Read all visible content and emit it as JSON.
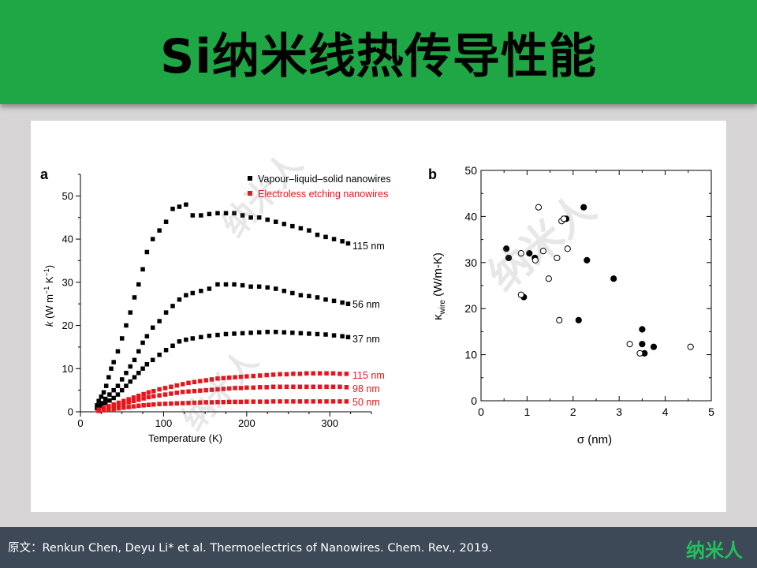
{
  "slide_title": "Si纳米线热传导性能",
  "footer": {
    "citation": "原文：Renkun Chen, Deyu Li* et al. Thermoelectrics of Nanowires. Chem. Rev., 2019.",
    "logo": "纳米人"
  },
  "watermark_text": "纳米人",
  "colors": {
    "header_green": "#1fa645",
    "footer_bg": "#3d4957",
    "logo_green": "#22c05a",
    "vls_series": "#000000",
    "ee_series": "#e8141b"
  },
  "chart_data": [
    {
      "type": "scatter",
      "panel_label": "a",
      "xlabel": "Temperature (K)",
      "ylabel": "k (W m⁻¹ K⁻¹)",
      "ylabel_parts": {
        "symbol": "k",
        "pre": " (W m",
        "exp1": "−1",
        "mid": " K",
        "exp2": "−1",
        "post": ")"
      },
      "xlim": [
        0,
        350
      ],
      "ylim": [
        0,
        55
      ],
      "xticks": [
        0,
        100,
        200,
        300
      ],
      "yticks": [
        0,
        10,
        20,
        30,
        40,
        50
      ],
      "legend": {
        "placement": "top-right",
        "entries": [
          {
            "name": "Vapour–liquid–solid nanowires",
            "color": "#000000"
          },
          {
            "name": "Electroless etching nanowires",
            "color": "#e8141b"
          }
        ]
      },
      "series": [
        {
          "group": "Vapour–liquid–solid nanowires",
          "label": "115 nm",
          "color": "#000000",
          "marker": "square",
          "x": [
            20,
            22,
            25,
            28,
            31,
            34,
            37,
            40,
            45,
            50,
            55,
            60,
            65,
            70,
            75,
            80,
            87,
            95,
            103,
            111,
            119,
            127,
            135,
            145,
            155,
            165,
            175,
            185,
            195,
            205,
            215,
            225,
            235,
            245,
            255,
            265,
            275,
            285,
            295,
            305,
            315,
            322
          ],
          "y": [
            1.5,
            2.5,
            3.5,
            4.5,
            6,
            8,
            10,
            11.5,
            14,
            17,
            20,
            23,
            26.5,
            29.5,
            33,
            37,
            40,
            42,
            44,
            47,
            47.5,
            48,
            45.5,
            45.5,
            45.8,
            46,
            46,
            46,
            45.5,
            45,
            45,
            44.5,
            44,
            43.5,
            43,
            42.5,
            42,
            41,
            40.5,
            40,
            39.5,
            39
          ]
        },
        {
          "group": "Vapour–liquid–solid nanowires",
          "label": "56 nm",
          "color": "#000000",
          "marker": "square",
          "x": [
            20,
            25,
            30,
            35,
            40,
            45,
            50,
            55,
            60,
            65,
            70,
            75,
            80,
            87,
            95,
            103,
            111,
            119,
            127,
            135,
            145,
            155,
            165,
            175,
            185,
            195,
            205,
            215,
            225,
            235,
            245,
            255,
            265,
            275,
            285,
            295,
            305,
            315,
            322
          ],
          "y": [
            1,
            2,
            3,
            4,
            5,
            6,
            7.5,
            9,
            10.5,
            12,
            14,
            16,
            17.5,
            19.5,
            21,
            23,
            24.5,
            26,
            27,
            27.5,
            28,
            28.5,
            29.5,
            29.5,
            29.5,
            29.3,
            29,
            29,
            28.8,
            28.5,
            28,
            27.5,
            27,
            26.8,
            26.5,
            26,
            25.7,
            25.3,
            25
          ]
        },
        {
          "group": "Vapour–liquid–solid nanowires",
          "label": "37 nm",
          "color": "#000000",
          "marker": "square",
          "x": [
            20,
            25,
            30,
            35,
            40,
            45,
            50,
            55,
            60,
            65,
            70,
            75,
            80,
            87,
            95,
            103,
            111,
            119,
            127,
            135,
            145,
            155,
            165,
            175,
            185,
            195,
            205,
            215,
            225,
            235,
            245,
            255,
            265,
            275,
            285,
            295,
            305,
            315,
            322
          ],
          "y": [
            0.8,
            1.3,
            2,
            2.6,
            3.2,
            4,
            5,
            6,
            7,
            8,
            9,
            10,
            11,
            12,
            13.2,
            14.3,
            15.3,
            16.3,
            16.7,
            17,
            17.3,
            17.6,
            17.8,
            18,
            18.1,
            18.2,
            18.3,
            18.4,
            18.5,
            18.5,
            18.4,
            18.3,
            18.2,
            18.1,
            18,
            17.9,
            17.7,
            17.5,
            17.3
          ]
        },
        {
          "group": "Electroless etching nanowires",
          "label": "115 nm",
          "color": "#e8141b",
          "marker": "square",
          "x": [
            22,
            28,
            34,
            40,
            46,
            52,
            58,
            64,
            70,
            76,
            82,
            88,
            95,
            102,
            109,
            116,
            123,
            130,
            137,
            144,
            151,
            158,
            165,
            172,
            179,
            186,
            193,
            200,
            208,
            216,
            224,
            232,
            240,
            248,
            256,
            264,
            272,
            280,
            288,
            296,
            304,
            312,
            320
          ],
          "y": [
            0.5,
            0.9,
            1.3,
            1.7,
            2.1,
            2.5,
            2.9,
            3.3,
            3.7,
            4.1,
            4.5,
            4.8,
            5.2,
            5.5,
            5.8,
            6.1,
            6.4,
            6.7,
            6.9,
            7.1,
            7.3,
            7.5,
            7.7,
            7.8,
            7.9,
            8,
            8.1,
            8.2,
            8.3,
            8.4,
            8.5,
            8.6,
            8.7,
            8.7,
            8.8,
            8.8,
            8.9,
            8.9,
            8.9,
            8.9,
            8.9,
            8.8,
            8.8
          ]
        },
        {
          "group": "Electroless etching nanowires",
          "label": "98 nm",
          "color": "#e8141b",
          "marker": "square",
          "x": [
            22,
            28,
            34,
            40,
            46,
            52,
            58,
            64,
            70,
            76,
            82,
            88,
            95,
            102,
            109,
            116,
            123,
            130,
            137,
            144,
            151,
            158,
            165,
            172,
            179,
            186,
            193,
            200,
            208,
            216,
            224,
            232,
            240,
            248,
            256,
            264,
            272,
            280,
            288,
            296,
            304,
            312,
            320
          ],
          "y": [
            0.4,
            0.7,
            1,
            1.3,
            1.6,
            1.9,
            2.2,
            2.5,
            2.8,
            3.1,
            3.4,
            3.6,
            3.8,
            4,
            4.2,
            4.4,
            4.6,
            4.7,
            4.8,
            4.9,
            5,
            5.1,
            5.2,
            5.3,
            5.4,
            5.5,
            5.5,
            5.6,
            5.6,
            5.7,
            5.7,
            5.8,
            5.8,
            5.8,
            5.8,
            5.8,
            5.8,
            5.8,
            5.8,
            5.8,
            5.8,
            5.8,
            5.7
          ]
        },
        {
          "group": "Electroless etching nanowires",
          "label": "50 nm",
          "color": "#e8141b",
          "marker": "square",
          "x": [
            22,
            28,
            34,
            40,
            46,
            52,
            58,
            64,
            70,
            76,
            82,
            88,
            95,
            102,
            109,
            116,
            123,
            130,
            137,
            144,
            151,
            158,
            165,
            172,
            179,
            186,
            193,
            200,
            208,
            216,
            224,
            232,
            240,
            248,
            256,
            264,
            272,
            280,
            288,
            296,
            304,
            312,
            320
          ],
          "y": [
            0.2,
            0.35,
            0.5,
            0.65,
            0.8,
            0.95,
            1.1,
            1.25,
            1.4,
            1.5,
            1.6,
            1.7,
            1.8,
            1.85,
            1.9,
            1.95,
            2,
            2.05,
            2.1,
            2.15,
            2.2,
            2.2,
            2.25,
            2.25,
            2.3,
            2.3,
            2.3,
            2.35,
            2.35,
            2.35,
            2.35,
            2.4,
            2.4,
            2.4,
            2.4,
            2.4,
            2.4,
            2.4,
            2.4,
            2.4,
            2.4,
            2.4,
            2.4
          ]
        }
      ]
    },
    {
      "type": "scatter",
      "panel_label": "b",
      "xlabel": "σ (nm)",
      "ylabel_parts": {
        "symbol": "κ",
        "sub": "wire",
        "post": " (W/m-K)"
      },
      "xlim": [
        0,
        5
      ],
      "ylim": [
        0,
        50
      ],
      "xticks": [
        0,
        1,
        2,
        3,
        4,
        5
      ],
      "yticks": [
        0,
        10,
        20,
        30,
        40,
        50
      ],
      "grid": false,
      "series": [
        {
          "marker": "filled-circle",
          "x": [
            0.55,
            0.6,
            0.93,
            1.05,
            1.17,
            1.85,
            2.12,
            2.23,
            2.3,
            2.88,
            3.5,
            3.5,
            3.55,
            3.75
          ],
          "y": [
            33,
            31,
            22.5,
            32,
            31,
            39.5,
            17.5,
            42,
            30.5,
            26.5,
            15.5,
            12.3,
            10.3,
            11.7
          ]
        },
        {
          "marker": "open-circle",
          "x": [
            0.87,
            0.87,
            1.18,
            1.25,
            1.35,
            1.47,
            1.65,
            1.7,
            1.75,
            1.8,
            1.88,
            3.23,
            3.45,
            4.55
          ],
          "y": [
            32,
            23,
            30.5,
            42,
            32.5,
            26.5,
            31,
            17.5,
            39,
            39.5,
            33,
            12.3,
            10.3,
            11.7
          ]
        }
      ]
    }
  ]
}
